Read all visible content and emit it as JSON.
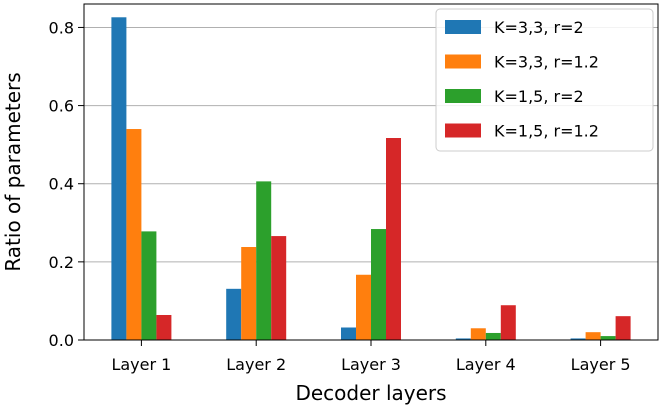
{
  "chart_data": {
    "type": "bar",
    "categories": [
      "Layer 1",
      "Layer 2",
      "Layer 3",
      "Layer 4",
      "Layer 5"
    ],
    "series": [
      {
        "name": "K=3,3, r=2",
        "color": "#1f77b4",
        "values": [
          0.826,
          0.131,
          0.032,
          0.004,
          0.004
        ]
      },
      {
        "name": "K=3,3, r=1.2",
        "color": "#ff7f0e",
        "values": [
          0.54,
          0.238,
          0.167,
          0.03,
          0.02
        ]
      },
      {
        "name": "K=1,5, r=2",
        "color": "#2ca02c",
        "values": [
          0.278,
          0.406,
          0.284,
          0.018,
          0.01
        ]
      },
      {
        "name": "K=1,5, r=1.2",
        "color": "#d62728",
        "values": [
          0.064,
          0.266,
          0.517,
          0.089,
          0.061
        ]
      }
    ],
    "xlabel": "Decoder layers",
    "ylabel": "Ratio of parameters",
    "ylim": [
      0,
      0.86
    ],
    "yticks": [
      0.0,
      0.2,
      0.4,
      0.6,
      0.8
    ],
    "ytick_labels": [
      "0.0",
      "0.2",
      "0.4",
      "0.6",
      "0.8"
    ],
    "grid": "horizontal",
    "legend_position": "top-right"
  }
}
